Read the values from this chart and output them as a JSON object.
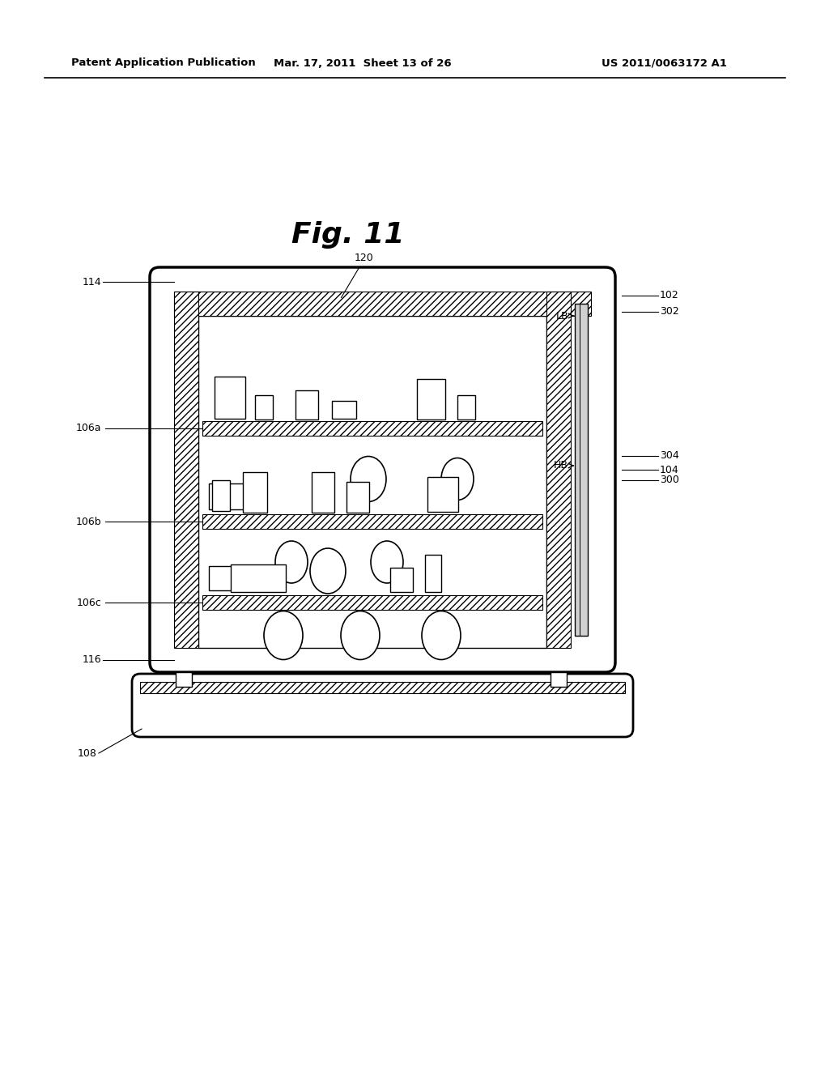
{
  "title": "Fig. 11",
  "header_left": "Patent Application Publication",
  "header_mid": "Mar. 17, 2011  Sheet 13 of 26",
  "header_right": "US 2011/0063172 A1",
  "bg_color": "#ffffff",
  "line_color": "#000000",
  "fig_width": 10.24,
  "fig_height": 13.2,
  "dpi": 100
}
